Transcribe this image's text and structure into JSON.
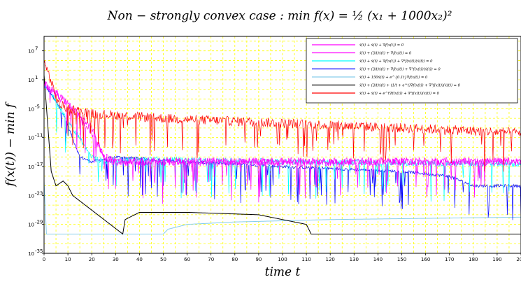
{
  "chart_data": {
    "type": "line",
    "title": "Non − strongly convex case : min f(x) = ½ (x₁ + 1000x₂)²",
    "xlabel": "time t",
    "ylabel": "f(x(t)) − min f",
    "y_scale": "log",
    "grid": true,
    "grid_color": "#ffff00",
    "legend_position": "top-right",
    "xlim": [
      0,
      200
    ],
    "ylim_exp": [
      -35,
      10
    ],
    "x_ticks": [
      0,
      10,
      20,
      30,
      40,
      50,
      60,
      70,
      80,
      90,
      100,
      110,
      120,
      130,
      140,
      150,
      160,
      170,
      180,
      190,
      200
    ],
    "y_ticks": [
      {
        "exp": 7,
        "label": "10"
      },
      {
        "exp": 1,
        "label": "10"
      },
      {
        "exp": -5,
        "label": "10"
      },
      {
        "exp": -11,
        "label": "10"
      },
      {
        "exp": -17,
        "label": "10"
      },
      {
        "exp": -23,
        "label": "10"
      },
      {
        "exp": -29,
        "label": "10"
      },
      {
        "exp": -35,
        "label": "10"
      }
    ],
    "series": [
      {
        "name": "ẍ(t) + ẋ(t) + ∇f(x(t)) = 0",
        "color": "#ff00ff",
        "points": [
          [
            0,
            0
          ],
          [
            3,
            -1
          ],
          [
            10,
            -4
          ],
          [
            20,
            -10
          ],
          [
            25,
            -15
          ],
          [
            30,
            -16
          ],
          [
            200,
            -16
          ]
        ],
        "noise": 0.9,
        "spikes": true
      },
      {
        "name": "ẍ(t) + (3/t)ẋ(t) + ∇f(x(t)) = 0",
        "color": "#ff00ff",
        "points": [
          [
            0,
            0
          ],
          [
            3,
            -1
          ],
          [
            10,
            -4
          ],
          [
            20,
            -9
          ],
          [
            25,
            -15
          ],
          [
            30,
            -16
          ],
          [
            200,
            -16
          ]
        ],
        "noise": 0.7,
        "spikes": false
      },
      {
        "name": "ẍ(t) + ẋ(t) + ∇f(x(t)) + ∇²f(x(t))(ẋ(t)) = 0",
        "color": "#00ffff",
        "points": [
          [
            0,
            0
          ],
          [
            3,
            -2
          ],
          [
            20,
            -15
          ],
          [
            25,
            -16
          ],
          [
            40,
            -15.5
          ],
          [
            100,
            -16
          ],
          [
            200,
            -16.5
          ]
        ],
        "noise": 0.6,
        "spikes": true
      },
      {
        "name": "ẍ(t) + (3/t)ẋ(t) + ∇f(x(t)) + ∇²f(x(t))(ẋ(t)) = 0",
        "color": "#0000ff",
        "points": [
          [
            0,
            0
          ],
          [
            3,
            -2
          ],
          [
            8,
            -6
          ],
          [
            15,
            -15
          ],
          [
            20,
            -16
          ],
          [
            30,
            -15
          ],
          [
            60,
            -16
          ],
          [
            80,
            -16.5
          ],
          [
            100,
            -17
          ],
          [
            150,
            -18
          ],
          [
            170,
            -19
          ],
          [
            180,
            -21
          ],
          [
            200,
            -21
          ]
        ],
        "noise": 0.3,
        "spikes": true
      },
      {
        "name": "ẍ(t) + 150ẋ(t) + e^{0.1t}∇f(x(t)) = 0",
        "color": "#87ceeb",
        "points": [
          [
            0,
            -20
          ],
          [
            1,
            -31
          ],
          [
            50,
            -31
          ],
          [
            52,
            -30
          ],
          [
            60,
            -29
          ],
          [
            80,
            -28.5
          ],
          [
            120,
            -28
          ],
          [
            200,
            -27.5
          ]
        ],
        "noise": 0,
        "spikes": false
      },
      {
        "name": "ẍ(t) + (3/t)ẋ(t) + (1/t + e^t)∇f(x(t)) + ∇²f(x(t))(ẋ(t)) = 0",
        "color": "#000000",
        "points": [
          [
            0,
            2
          ],
          [
            3,
            -18
          ],
          [
            5,
            -21
          ],
          [
            8,
            -20
          ],
          [
            10,
            -21
          ],
          [
            12,
            -23
          ],
          [
            33,
            -31
          ],
          [
            34,
            -28
          ],
          [
            40,
            -26.5
          ],
          [
            60,
            -26.5
          ],
          [
            90,
            -27
          ],
          [
            110,
            -29
          ],
          [
            112,
            -31
          ],
          [
            200,
            -31
          ]
        ],
        "noise": 0,
        "spikes": false
      },
      {
        "name": "ẍ(t) + ẋ(t) + e^t∇f(x(t)) + ∇²f(x(t))(ẋ(t)) = 0",
        "color": "#ff0000",
        "points": [
          [
            0,
            5
          ],
          [
            2,
            2
          ],
          [
            6,
            -4
          ],
          [
            10,
            -5
          ],
          [
            20,
            -6
          ],
          [
            50,
            -7
          ],
          [
            100,
            -8
          ],
          [
            150,
            -9
          ],
          [
            200,
            -10
          ]
        ],
        "noise": 1.0,
        "spikes": true
      }
    ]
  },
  "ytick_base": "10"
}
